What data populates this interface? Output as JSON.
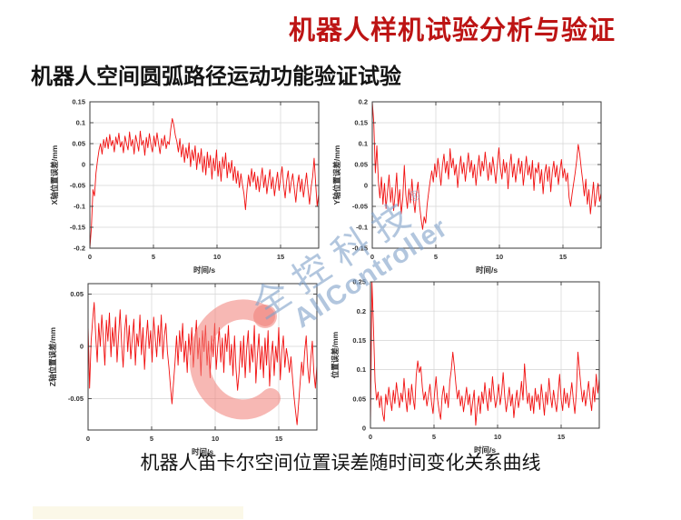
{
  "header": {
    "title": "机器人样机试验分析与验证",
    "title_color": "#bd1414",
    "subtitle": "机器人空间圆弧路径运动功能验证试验"
  },
  "footer": {
    "caption": "机器人笛卡尔空间位置误差随时间变化关系曲线"
  },
  "watermark": {
    "cn": "全控科技",
    "reg": "®",
    "en": "AllController",
    "text_color": "rgba(127,160,200,0.60)",
    "logo_color": "rgba(240,125,118,0.55)"
  },
  "chart_data": [
    {
      "id": "x-axis-error",
      "type": "line",
      "title": "",
      "xlabel": "时间/s",
      "ylabel": "X轴位置误差/mm",
      "xlim": [
        0,
        18
      ],
      "ylim": [
        -0.2,
        0.15
      ],
      "xticks": [
        0,
        5,
        10,
        15
      ],
      "yticks": [
        0.15,
        0.1,
        0.05,
        0,
        -0.05,
        -0.1,
        -0.15,
        -0.2
      ],
      "grid": true,
      "legend": "none",
      "line_color": "#f10f0f",
      "values": [
        -0.2,
        -0.15,
        -0.06,
        -0.075,
        -0.02,
        0.01,
        0.035,
        0.05,
        0.025,
        0.06,
        0.04,
        0.065,
        0.038,
        0.072,
        0.045,
        0.058,
        0.03,
        0.066,
        0.048,
        0.075,
        0.042,
        0.055,
        0.028,
        0.068,
        0.05,
        0.035,
        0.078,
        0.044,
        0.06,
        0.025,
        0.07,
        0.052,
        0.032,
        0.08,
        0.046,
        0.058,
        0.022,
        0.065,
        0.04,
        0.074,
        0.048,
        0.03,
        0.068,
        0.043,
        0.076,
        0.05,
        0.026,
        0.062,
        0.045,
        0.07,
        0.038,
        0.055,
        0.048,
        0.085,
        0.11,
        0.095,
        0.07,
        0.055,
        0.03,
        0.062,
        0.018,
        0.048,
        0.005,
        0.04,
        0.015,
        0.052,
        -0.005,
        0.035,
        0.01,
        0.045,
        -0.012,
        0.028,
        0.002,
        0.038,
        -0.018,
        0.02,
        -0.025,
        0.03,
        -0.008,
        0.022,
        -0.035,
        0.015,
        -0.015,
        0.035,
        -0.028,
        0.008,
        -0.04,
        0.018,
        -0.01,
        0.028,
        -0.032,
        0.005,
        -0.02,
        0.01,
        -0.038,
        -0.005,
        -0.045,
        -0.015,
        -0.055,
        -0.022,
        -0.048,
        -0.07,
        -0.108,
        -0.06,
        -0.025,
        -0.052,
        -0.01,
        -0.042,
        -0.018,
        -0.06,
        -0.028,
        -0.065,
        -0.035,
        -0.008,
        -0.055,
        -0.025,
        -0.07,
        -0.04,
        -0.012,
        -0.058,
        -0.03,
        -0.075,
        -0.045,
        -0.018,
        -0.062,
        -0.032,
        -0.005,
        -0.05,
        -0.08,
        -0.038,
        -0.015,
        -0.068,
        -0.042,
        -0.022,
        -0.058,
        -0.09,
        -0.048,
        -0.025,
        -0.065,
        -0.035,
        -0.078,
        -0.05,
        -0.02,
        -0.06,
        -0.095,
        -0.055,
        -0.03,
        0.015,
        -0.045,
        -0.1,
        -0.07
      ]
    },
    {
      "id": "y-axis-error",
      "type": "line",
      "title": "",
      "xlabel": "时间/s",
      "ylabel": "Y轴位置误差/mm",
      "xlim": [
        0,
        18
      ],
      "ylim": [
        -0.15,
        0.2
      ],
      "xticks": [
        0,
        5,
        10,
        15
      ],
      "yticks": [
        0.2,
        0.15,
        0.1,
        0.05,
        0,
        -0.05,
        -0.1,
        -0.15
      ],
      "grid": true,
      "legend": "none",
      "line_color": "#f10f0f",
      "values": [
        0.2,
        0.15,
        0.03,
        0.095,
        0.01,
        -0.03,
        0.02,
        -0.045,
        0.005,
        -0.055,
        -0.015,
        0.025,
        -0.04,
        -0.005,
        -0.06,
        -0.02,
        0.03,
        -0.05,
        -0.01,
        -0.068,
        -0.03,
        0.048,
        -0.022,
        -0.055,
        -0.008,
        -0.042,
        0.015,
        -0.035,
        -0.065,
        -0.018,
        0.008,
        -0.048,
        -0.08,
        -0.105,
        -0.075,
        -0.09,
        -0.045,
        -0.015,
        0.012,
        0.035,
        0.008,
        0.052,
        0.02,
        0.065,
        0.035,
        0.0,
        0.048,
        0.075,
        0.03,
        0.058,
        0.015,
        0.088,
        0.042,
        0.065,
        0.025,
        0.05,
        -0.005,
        0.038,
        0.07,
        0.028,
        0.055,
        0.01,
        0.045,
        0.078,
        0.032,
        0.06,
        0.018,
        0.05,
        0.0,
        0.04,
        0.072,
        0.022,
        0.058,
        0.035,
        0.08,
        0.045,
        0.012,
        0.055,
        0.025,
        0.068,
        0.038,
        0.005,
        0.05,
        0.09,
        0.042,
        0.015,
        0.062,
        0.03,
        0.055,
        -0.008,
        0.045,
        0.075,
        0.02,
        0.052,
        0.008,
        0.04,
        0.065,
        0.028,
        0.058,
        0.0,
        0.035,
        0.07,
        0.025,
        0.048,
        0.015,
        0.06,
        -0.012,
        0.042,
        0.03,
        0.055,
        0.005,
        0.038,
        -0.02,
        0.028,
        0.05,
        0.01,
        0.045,
        -0.015,
        0.032,
        0.058,
        0.02,
        0.048,
        0.002,
        0.035,
        0.062,
        0.018,
        0.04,
        0.01,
        0.03,
        -0.028,
        -0.05,
        -0.02,
        0.005,
        0.03,
        0.06,
        0.098,
        0.075,
        0.04,
        0.01,
        -0.025,
        0.015,
        -0.045,
        -0.01,
        -0.068,
        -0.03,
        0.008,
        -0.05,
        -0.022,
        0.005,
        -0.038,
        -0.018
      ]
    },
    {
      "id": "z-axis-error",
      "type": "line",
      "title": "",
      "xlabel": "时间/s",
      "ylabel": "Z轴位置误差/mm",
      "xlim": [
        0,
        18
      ],
      "ylim": [
        -0.08,
        0.06
      ],
      "xticks": [
        0,
        5,
        10,
        15
      ],
      "yticks": [
        0.05,
        0,
        -0.05
      ],
      "grid": true,
      "legend": "none",
      "line_color": "#f10f0f",
      "values": [
        0.02,
        -0.04,
        0.005,
        0.025,
        0.042,
        0.01,
        -0.015,
        0.022,
        0.0,
        0.03,
        0.008,
        -0.018,
        0.025,
        0.005,
        0.032,
        -0.01,
        0.018,
        0.0,
        0.028,
        -0.015,
        0.01,
        0.035,
        0.002,
        -0.02,
        0.015,
        0.03,
        -0.005,
        0.02,
        -0.012,
        0.008,
        0.026,
        -0.018,
        0.012,
        0.0,
        0.03,
        -0.008,
        0.018,
        -0.022,
        0.005,
        0.025,
        -0.002,
        0.015,
        -0.015,
        0.028,
        0.008,
        -0.01,
        0.02,
        0.0,
        0.03,
        -0.012,
        0.01,
        0.022,
        -0.005,
        -0.02,
        -0.038,
        -0.055,
        -0.035,
        -0.015,
        0.01,
        -0.018,
        0.015,
        -0.005,
        0.022,
        -0.015,
        0.005,
        -0.025,
        0.012,
        -0.008,
        0.018,
        -0.02,
        0.002,
        0.025,
        -0.012,
        0.008,
        -0.028,
        0.015,
        -0.005,
        0.02,
        -0.018,
        0.005,
        -0.03,
        0.01,
        -0.01,
        0.022,
        -0.022,
        0.0,
        0.018,
        -0.015,
        0.008,
        -0.025,
        0.012,
        -0.005,
        0.02,
        -0.018,
        0.002,
        -0.028,
        0.01,
        -0.022,
        -0.042,
        -0.025,
        0.005,
        -0.02,
        0.01,
        -0.03,
        -0.002,
        0.015,
        -0.025,
        0.002,
        -0.015,
        0.02,
        -0.035,
        -0.008,
        0.012,
        -0.022,
        0.0,
        -0.03,
        0.008,
        -0.018,
        0.015,
        -0.038,
        -0.01,
        0.005,
        -0.028,
        0.0,
        -0.015,
        0.018,
        -0.032,
        -0.005,
        0.01,
        -0.02,
        -0.002,
        -0.012,
        -0.025,
        -0.01,
        -0.03,
        -0.048,
        -0.062,
        -0.075,
        -0.055,
        -0.035,
        -0.015,
        -0.028,
        -0.005,
        0.01,
        -0.02,
        -0.035,
        -0.012,
        0.005,
        -0.025,
        -0.04,
        -0.018
      ]
    },
    {
      "id": "total-position-error",
      "type": "line",
      "title": "",
      "xlabel": "时间/s",
      "ylabel": "位置误差/mm",
      "xlim": [
        0,
        18
      ],
      "ylim": [
        0,
        0.25
      ],
      "xticks": [
        0,
        5,
        10,
        15
      ],
      "yticks": [
        0.25,
        0.2,
        0.15,
        0.1,
        0.05,
        0
      ],
      "grid": true,
      "legend": "none",
      "line_color": "#f10f0f",
      "values": [
        0.003,
        0.25,
        0.17,
        0.08,
        0.048,
        0.062,
        0.035,
        0.055,
        0.025,
        0.012,
        0.058,
        0.04,
        0.07,
        0.048,
        0.03,
        0.065,
        0.042,
        0.078,
        0.055,
        0.035,
        0.06,
        0.045,
        0.085,
        0.052,
        0.028,
        0.068,
        0.04,
        0.075,
        0.05,
        0.032,
        0.09,
        0.115,
        0.095,
        0.105,
        0.07,
        0.048,
        0.062,
        0.038,
        0.055,
        0.075,
        0.045,
        0.025,
        0.058,
        0.088,
        0.05,
        0.03,
        0.015,
        0.055,
        0.072,
        0.042,
        0.06,
        0.035,
        0.08,
        0.1,
        0.13,
        0.105,
        0.075,
        0.05,
        0.065,
        0.038,
        0.055,
        0.028,
        0.048,
        0.07,
        0.04,
        0.058,
        0.022,
        0.045,
        0.065,
        0.005,
        0.035,
        0.055,
        0.025,
        0.062,
        0.042,
        0.078,
        0.05,
        0.03,
        0.068,
        0.045,
        0.088,
        0.058,
        0.035,
        0.052,
        0.075,
        0.04,
        0.06,
        0.095,
        0.055,
        0.028,
        0.048,
        0.07,
        0.038,
        0.058,
        0.018,
        0.045,
        0.065,
        0.035,
        0.052,
        0.08,
        0.048,
        0.11,
        0.072,
        0.042,
        0.06,
        0.03,
        0.055,
        0.025,
        0.068,
        0.045,
        0.058,
        0.032,
        0.075,
        0.05,
        0.022,
        0.062,
        0.04,
        0.085,
        0.055,
        0.035,
        0.065,
        0.045,
        0.028,
        0.058,
        0.092,
        0.05,
        0.03,
        0.068,
        0.042,
        0.06,
        0.035,
        0.055,
        0.078,
        0.048,
        0.025,
        0.062,
        0.13,
        0.1,
        0.07,
        0.045,
        0.065,
        0.038,
        0.058,
        0.08,
        0.05,
        0.03,
        0.07,
        0.045,
        0.092,
        0.06,
        0.085
      ]
    }
  ]
}
